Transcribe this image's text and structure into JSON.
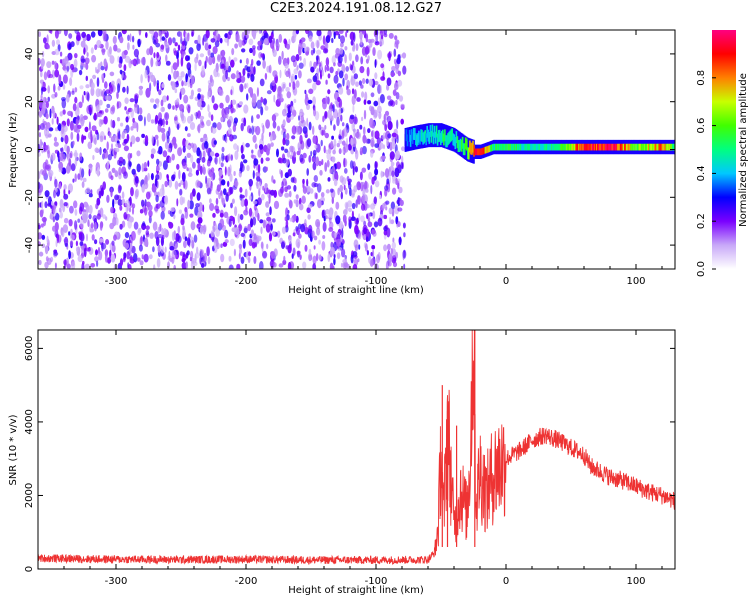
{
  "title": "C2E3.2024.191.08.12.G27",
  "chart_data": [
    {
      "type": "heatmap",
      "xlabel": "Height of straight line (km)",
      "ylabel": "Frequency (Hz)",
      "xlim": [
        -360,
        130
      ],
      "ylim": [
        -50,
        50
      ],
      "x_ticks": [
        -300,
        -200,
        -100,
        0,
        100
      ],
      "y_ticks": [
        -40,
        -20,
        0,
        20,
        40
      ],
      "noise_region_x": [
        -360,
        -78
      ],
      "signal_track": {
        "x": [
          -78,
          -70,
          -60,
          -50,
          -40,
          -35,
          -30,
          -25,
          -20,
          -10,
          0,
          20,
          40,
          60,
          80,
          100,
          120,
          130
        ],
        "frequency_hz": [
          4,
          5,
          6,
          6,
          4,
          2,
          0,
          -1,
          -1,
          1,
          1,
          1,
          1,
          1,
          1,
          1,
          1,
          1
        ],
        "peak_amplitude": [
          0.3,
          0.4,
          0.45,
          0.5,
          0.45,
          0.5,
          0.6,
          0.9,
          0.95,
          0.5,
          0.55,
          0.45,
          0.5,
          0.9,
          0.95,
          0.6,
          0.8,
          0.5
        ]
      },
      "colorbar": {
        "label": "Normalized spectral amplitude",
        "range": [
          0,
          1
        ],
        "ticks": [
          "0.0",
          "0.2",
          "0.4",
          "0.6",
          "0.8"
        ],
        "colors": [
          "#ffffff",
          "#c8a8f8",
          "#7a00ff",
          "#0000ff",
          "#00c8ff",
          "#00ff80",
          "#40ff00",
          "#c8ff00",
          "#ff8000",
          "#ff0000",
          "#ff0080"
        ]
      }
    },
    {
      "type": "line",
      "xlabel": "Height of straight line (km)",
      "ylabel": "SNR (10 * v/v)",
      "xlim": [
        -360,
        130
      ],
      "ylim": [
        0,
        6500
      ],
      "x_ticks": [
        -300,
        -200,
        -100,
        0,
        100
      ],
      "y_ticks": [
        0,
        2000,
        4000,
        6000
      ],
      "color": "#ee3333",
      "x": [
        -360,
        -300,
        -250,
        -200,
        -150,
        -100,
        -60,
        -55,
        -52,
        -50,
        -48,
        -45,
        -40,
        -35,
        -30,
        -28,
        -25,
        -23,
        -20,
        -15,
        -10,
        0,
        10,
        20,
        30,
        40,
        50,
        60,
        65,
        70,
        80,
        90,
        100,
        110,
        120,
        130
      ],
      "values": [
        250,
        220,
        210,
        220,
        200,
        200,
        210,
        400,
        1200,
        3400,
        1400,
        4000,
        1200,
        2200,
        1500,
        2800,
        6500,
        1700,
        2700,
        2000,
        2600,
        3000,
        3200,
        3500,
        3650,
        3500,
        3300,
        3100,
        2800,
        2700,
        2500,
        2400,
        2250,
        2100,
        2000,
        1850
      ],
      "spikes": [
        {
          "x": -24,
          "y": 6500
        },
        {
          "x": -49,
          "y": 5000
        },
        {
          "x": -45,
          "y": 4300
        },
        {
          "x": -38,
          "y": 3900
        }
      ]
    }
  ]
}
